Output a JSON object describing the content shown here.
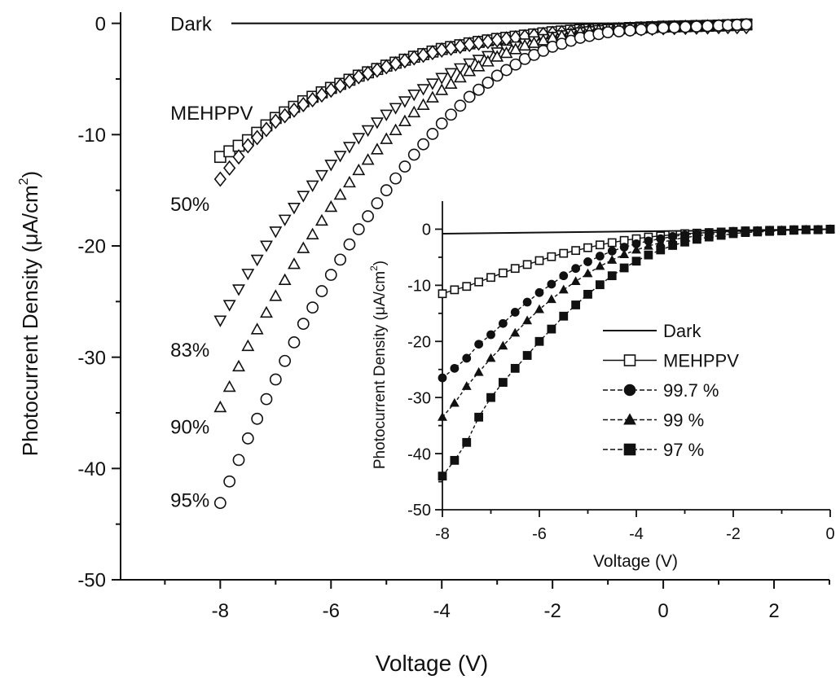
{
  "chart_data": [
    {
      "id": "main",
      "type": "scatter",
      "xlabel": "Voltage (V)",
      "ylabel_main": "Photocurrent Density (μA/cm",
      "ylabel_sup": "2",
      "ylabel_close": ")",
      "xlim": [
        -9.8,
        3
      ],
      "ylim": [
        -50,
        1
      ],
      "x_ticks": [
        -8,
        -6,
        -4,
        -2,
        0,
        2
      ],
      "x_tick_labels": [
        "-8",
        "-6",
        "-4",
        "-2",
        "0",
        "2"
      ],
      "y_ticks": [
        0,
        -10,
        -20,
        -30,
        -40,
        -50
      ],
      "y_tick_labels": [
        "0",
        "-10",
        "-20",
        "-30",
        "-40",
        "-50"
      ],
      "dark_line": {
        "name": "Dark",
        "x": [
          -7.8,
          1.6
        ],
        "y": [
          0,
          0
        ]
      },
      "series": [
        {
          "name": "MEHPPV",
          "marker": "square-open",
          "x": [
            -8,
            -7.5,
            -7,
            -6.5,
            -6,
            -5.5,
            -5,
            -4.5,
            -4,
            -3.5,
            -3,
            -2.5,
            -2,
            -1.5,
            -1,
            0,
            1,
            1.5
          ],
          "y": [
            -12,
            -10.5,
            -8.5,
            -7,
            -5.8,
            -4.7,
            -3.8,
            -3,
            -2.3,
            -1.8,
            -1.4,
            -1.1,
            -0.8,
            -0.6,
            -0.5,
            -0.3,
            -0.2,
            -0.1
          ]
        },
        {
          "name": "50%",
          "marker": "diamond-open",
          "x": [
            -8,
            -7.5,
            -7,
            -6.5,
            -6,
            -5.5,
            -5,
            -4.5,
            -4,
            -3.5,
            -3,
            -2.5,
            -2,
            -1.5,
            -1,
            0,
            1,
            1.5
          ],
          "y": [
            -14,
            -11,
            -8.8,
            -7.3,
            -6,
            -4.8,
            -3.9,
            -3.1,
            -2.4,
            -1.9,
            -1.5,
            -1.2,
            -0.9,
            -0.7,
            -0.6,
            -0.4,
            -0.3,
            -0.3
          ]
        },
        {
          "name": "83%",
          "marker": "triangle-down-open",
          "x": [
            -8,
            -7.5,
            -7,
            -6.5,
            -6,
            -5.5,
            -5,
            -4.5,
            -4,
            -3.5,
            -3,
            -2.5,
            -2,
            -1.5,
            -1,
            0,
            1,
            1.5
          ],
          "y": [
            -26.7,
            -22.5,
            -18.7,
            -15.5,
            -12.7,
            -10.3,
            -8.2,
            -6.4,
            -4.9,
            -3.6,
            -2.6,
            -1.8,
            -1.2,
            -0.8,
            -0.5,
            -0.3,
            -0.2,
            -0.1
          ]
        },
        {
          "name": "90%",
          "marker": "triangle-up-open",
          "x": [
            -8,
            -7.5,
            -7,
            -6.5,
            -6,
            -5.5,
            -5,
            -4.5,
            -4,
            -3.5,
            -3,
            -2.5,
            -2,
            -1.5,
            -1,
            0,
            1,
            1.5
          ],
          "y": [
            -34.5,
            -29,
            -24.5,
            -20.2,
            -16.5,
            -13.2,
            -10.4,
            -8,
            -6,
            -4.3,
            -3,
            -2,
            -1.3,
            -0.8,
            -0.5,
            -0.3,
            -0.2,
            -0.1
          ]
        },
        {
          "name": "95%",
          "marker": "circle-open",
          "x": [
            -8,
            -7.5,
            -7,
            -6.5,
            -6,
            -5.5,
            -5,
            -4.5,
            -4,
            -3.5,
            -3,
            -2.5,
            -2,
            -1.5,
            -1,
            0,
            1,
            1.5
          ],
          "y": [
            -43.1,
            -37.3,
            -32,
            -27,
            -22.6,
            -18.5,
            -15,
            -11.8,
            -9,
            -6.6,
            -4.7,
            -3.2,
            -2.1,
            -1.3,
            -0.8,
            -0.4,
            -0.2,
            -0.1
          ]
        }
      ],
      "curve_labels": [
        {
          "text": "Dark",
          "x": -8.9,
          "y": 0
        },
        {
          "text": "MEHPPV",
          "x": -8.9,
          "y": -8
        },
        {
          "text": "50%",
          "x": -8.9,
          "y": -16.2
        },
        {
          "text": "83%",
          "x": -8.9,
          "y": -29.3
        },
        {
          "text": "90%",
          "x": -8.9,
          "y": -36.2
        },
        {
          "text": "95%",
          "x": -8.9,
          "y": -42.8
        }
      ]
    },
    {
      "id": "inset",
      "type": "line",
      "xlabel": "Voltage (V)",
      "ylabel_main": "Photocurrent Density (μA/cm",
      "ylabel_sup": "2",
      "ylabel_close": ")",
      "xlim": [
        -8,
        0
      ],
      "ylim": [
        -50,
        5
      ],
      "x_ticks": [
        -8,
        -6,
        -4,
        -2,
        0
      ],
      "x_tick_labels": [
        "-8",
        "-6",
        "-4",
        "-2",
        "0"
      ],
      "y_ticks": [
        0,
        -10,
        -20,
        -30,
        -40,
        -50
      ],
      "y_tick_labels": [
        "0",
        "-10",
        "-20",
        "-30",
        "-40",
        "-50"
      ],
      "legend_position": "center-right",
      "series": [
        {
          "name": "Dark",
          "marker": "none",
          "style": "solid",
          "x": [
            -8,
            0
          ],
          "y": [
            -0.8,
            0
          ]
        },
        {
          "name": "MEHPPV",
          "marker": "square-open",
          "style": "solid",
          "x": [
            -8,
            -7.75,
            -7.5,
            -7.25,
            -7,
            -6.75,
            -6.5,
            -6.25,
            -6,
            -5.75,
            -5.5,
            -5.25,
            -5,
            -4.75,
            -4.5,
            -4.25,
            -4,
            -3.75,
            -3.5,
            -3.25,
            -3,
            -2.75,
            -2.5,
            -2.25,
            -2,
            -1.75,
            -1.5,
            -1.25,
            -1,
            -0.75,
            -0.5,
            -0.25,
            0
          ],
          "y": [
            -11.5,
            -10.8,
            -10.2,
            -9.4,
            -8.6,
            -7.8,
            -7,
            -6.3,
            -5.6,
            -4.9,
            -4.3,
            -3.8,
            -3.3,
            -2.8,
            -2.4,
            -2,
            -1.7,
            -1.4,
            -1.2,
            -1,
            -0.8,
            -0.7,
            -0.6,
            -0.5,
            -0.4,
            -0.3,
            -0.3,
            -0.2,
            -0.2,
            -0.1,
            -0.1,
            -0.1,
            0
          ]
        },
        {
          "name": "99.7 %",
          "marker": "circle-filled",
          "style": "dashed",
          "x": [
            -8,
            -7.75,
            -7.5,
            -7.25,
            -7,
            -6.75,
            -6.5,
            -6.25,
            -6,
            -5.75,
            -5.5,
            -5.25,
            -5,
            -4.75,
            -4.5,
            -4.25,
            -4,
            -3.75,
            -3.5,
            -3.25,
            -3,
            -2.75,
            -2.5,
            -2.25,
            -2,
            -1.75,
            -1.5,
            -1.25,
            -1,
            -0.75,
            -0.5,
            -0.25,
            0
          ],
          "y": [
            -26.5,
            -24.8,
            -23,
            -20.5,
            -18.8,
            -16.8,
            -14.8,
            -13,
            -11.3,
            -9.8,
            -8.3,
            -7,
            -5.8,
            -4.8,
            -3.9,
            -3.2,
            -2.6,
            -2.1,
            -1.7,
            -1.3,
            -1,
            -0.8,
            -0.6,
            -0.5,
            -0.4,
            -0.3,
            -0.3,
            -0.2,
            -0.2,
            -0.1,
            -0.1,
            -0.1,
            0
          ]
        },
        {
          "name": "99 %",
          "marker": "triangle-filled",
          "style": "dashed",
          "x": [
            -8,
            -7.75,
            -7.5,
            -7.25,
            -7,
            -6.75,
            -6.5,
            -6.25,
            -6,
            -5.75,
            -5.5,
            -5.25,
            -5,
            -4.75,
            -4.5,
            -4.25,
            -4,
            -3.75,
            -3.5,
            -3.25,
            -3,
            -2.75,
            -2.5,
            -2.25,
            -2,
            -1.75,
            -1.5,
            -1.25,
            -1,
            -0.75,
            -0.5,
            -0.25,
            0
          ],
          "y": [
            -33.5,
            -31,
            -28,
            -25.5,
            -23,
            -20.8,
            -18.5,
            -16.3,
            -14.3,
            -12.5,
            -10.8,
            -9.3,
            -7.9,
            -6.6,
            -5.5,
            -4.5,
            -3.7,
            -3,
            -2.4,
            -1.9,
            -1.5,
            -1.2,
            -0.9,
            -0.7,
            -0.5,
            -0.4,
            -0.3,
            -0.3,
            -0.2,
            -0.2,
            -0.1,
            -0.1,
            0
          ]
        },
        {
          "name": "97 %",
          "marker": "square-filled",
          "style": "dashed",
          "x": [
            -8,
            -7.75,
            -7.5,
            -7.25,
            -7,
            -6.75,
            -6.5,
            -6.25,
            -6,
            -5.75,
            -5.5,
            -5.25,
            -5,
            -4.75,
            -4.5,
            -4.25,
            -4,
            -3.75,
            -3.5,
            -3.25,
            -3,
            -2.75,
            -2.5,
            -2.25,
            -2,
            -1.75,
            -1.5,
            -1.25,
            -1,
            -0.75,
            -0.5,
            -0.25,
            0
          ],
          "y": [
            -44,
            -41.2,
            -38,
            -33.5,
            -30,
            -27.3,
            -24.8,
            -22.5,
            -20,
            -17.8,
            -15.5,
            -13.5,
            -11.6,
            -9.9,
            -8.3,
            -6.9,
            -5.7,
            -4.6,
            -3.7,
            -2.9,
            -2.3,
            -1.8,
            -1.4,
            -1.1,
            -0.8,
            -0.6,
            -0.5,
            -0.4,
            -0.3,
            -0.2,
            -0.1,
            -0.1,
            0
          ]
        }
      ]
    }
  ]
}
